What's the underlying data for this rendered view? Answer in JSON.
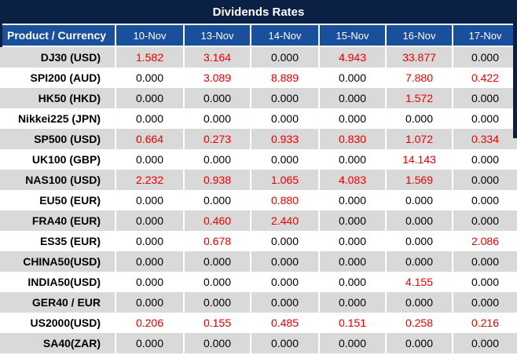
{
  "title": "Dividends Rates",
  "colors": {
    "navy": "#0A2044",
    "blue": "#1A4F9C",
    "gray": "#D9D9D9",
    "white": "#FFFFFF",
    "value_nonzero": "#EE0000",
    "value_zero": "#000000",
    "header_text": "#FFFFFF"
  },
  "chart_data": {
    "type": "table",
    "title": "Dividends Rates",
    "columns": [
      "Product / Currency",
      "10-Nov",
      "13-Nov",
      "14-Nov",
      "15-Nov",
      "16-Nov",
      "17-Nov"
    ],
    "rows": [
      {
        "product": "DJ30 (USD)",
        "values": [
          "1.582",
          "3.164",
          "0.000",
          "4.943",
          "33.877",
          "0.000"
        ]
      },
      {
        "product": "SPI200 (AUD)",
        "values": [
          "0.000",
          "3.089",
          "8.889",
          "0.000",
          "7.880",
          "0.422"
        ]
      },
      {
        "product": "HK50 (HKD)",
        "values": [
          "0.000",
          "0.000",
          "0.000",
          "0.000",
          "1.572",
          "0.000"
        ]
      },
      {
        "product": "Nikkei225 (JPN)",
        "values": [
          "0.000",
          "0.000",
          "0.000",
          "0.000",
          "0.000",
          "0.000"
        ]
      },
      {
        "product": "SP500 (USD)",
        "values": [
          "0.664",
          "0.273",
          "0.933",
          "0.830",
          "1.072",
          "0.334"
        ]
      },
      {
        "product": "UK100 (GBP)",
        "values": [
          "0.000",
          "0.000",
          "0.000",
          "0.000",
          "14.143",
          "0.000"
        ]
      },
      {
        "product": "NAS100 (USD)",
        "values": [
          "2.232",
          "0.938",
          "1.065",
          "4.083",
          "1.569",
          "0.000"
        ]
      },
      {
        "product": "EU50 (EUR)",
        "values": [
          "0.000",
          "0.000",
          "0.880",
          "0.000",
          "0.000",
          "0.000"
        ]
      },
      {
        "product": "FRA40 (EUR)",
        "values": [
          "0.000",
          "0.460",
          "2.440",
          "0.000",
          "0.000",
          "0.000"
        ]
      },
      {
        "product": "ES35 (EUR)",
        "values": [
          "0.000",
          "0.678",
          "0.000",
          "0.000",
          "0.000",
          "2.086"
        ]
      },
      {
        "product": "CHINA50(USD)",
        "values": [
          "0.000",
          "0.000",
          "0.000",
          "0.000",
          "0.000",
          "0.000"
        ]
      },
      {
        "product": "INDIA50(USD)",
        "values": [
          "0.000",
          "0.000",
          "0.000",
          "0.000",
          "4.155",
          "0.000"
        ]
      },
      {
        "product": "GER40 / EUR",
        "values": [
          "0.000",
          "0.000",
          "0.000",
          "0.000",
          "0.000",
          "0.000"
        ]
      },
      {
        "product": "US2000(USD)",
        "values": [
          "0.206",
          "0.155",
          "0.485",
          "0.151",
          "0.258",
          "0.216"
        ]
      },
      {
        "product": "SA40(ZAR)",
        "values": [
          "0.000",
          "0.000",
          "0.000",
          "0.000",
          "0.000",
          "0.000"
        ]
      }
    ],
    "style_note": "non-zero values rendered red, zero values black; odd rows shaded gray"
  }
}
